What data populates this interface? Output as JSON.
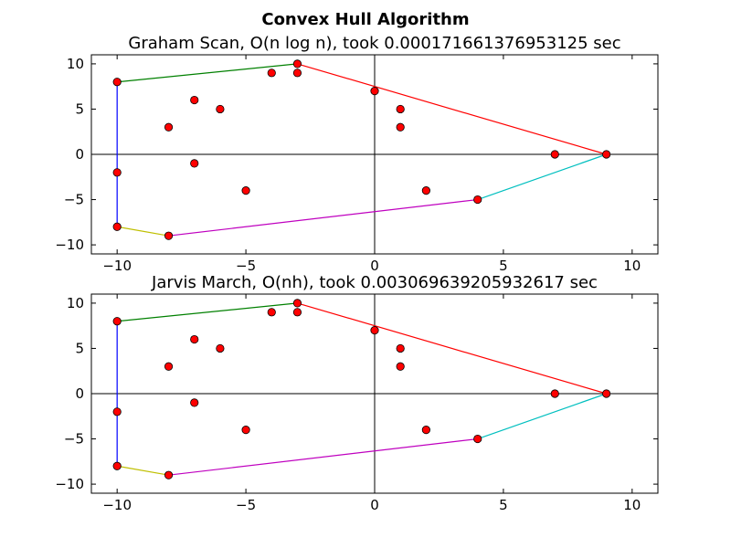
{
  "figure": {
    "suptitle": "Convex Hull Algorithm"
  },
  "chart_data": [
    {
      "type": "scatter",
      "title": "Graham Scan, O(n log n), took 0.000171661376953125 sec",
      "xlabel": "",
      "ylabel": "",
      "xlim": [
        -11,
        11
      ],
      "ylim": [
        -11,
        11
      ],
      "xticks": [
        -10,
        -5,
        0,
        5,
        10
      ],
      "yticks": [
        -10,
        -5,
        0,
        5,
        10
      ],
      "xtick_labels": [
        "−10",
        "−5",
        "0",
        "5",
        "10"
      ],
      "ytick_labels": [
        "−10",
        "−5",
        "0",
        "5",
        "10"
      ],
      "axis_lines_at_zero": true,
      "grid": false,
      "points": [
        {
          "x": -10,
          "y": 8
        },
        {
          "x": -10,
          "y": -2
        },
        {
          "x": -10,
          "y": -8
        },
        {
          "x": -8,
          "y": 3
        },
        {
          "x": -8,
          "y": -9
        },
        {
          "x": -7,
          "y": 6
        },
        {
          "x": -7,
          "y": -1
        },
        {
          "x": -6,
          "y": 5
        },
        {
          "x": -5,
          "y": -4
        },
        {
          "x": -4,
          "y": 9
        },
        {
          "x": -3,
          "y": 10
        },
        {
          "x": -3,
          "y": 9
        },
        {
          "x": 0,
          "y": 7
        },
        {
          "x": 1,
          "y": 5
        },
        {
          "x": 1,
          "y": 3
        },
        {
          "x": 2,
          "y": -4
        },
        {
          "x": 4,
          "y": -5
        },
        {
          "x": 7,
          "y": 0
        },
        {
          "x": 9,
          "y": 0
        }
      ],
      "point_color": "#ff0000",
      "hull_edges": [
        {
          "from": [
            -10,
            8
          ],
          "to": [
            -3,
            10
          ],
          "color": "#008000"
        },
        {
          "from": [
            -3,
            10
          ],
          "to": [
            9,
            0
          ],
          "color": "#ff0000"
        },
        {
          "from": [
            9,
            0
          ],
          "to": [
            4,
            -5
          ],
          "color": "#00bfbf"
        },
        {
          "from": [
            4,
            -5
          ],
          "to": [
            -8,
            -9
          ],
          "color": "#bf00bf"
        },
        {
          "from": [
            -8,
            -9
          ],
          "to": [
            -10,
            -8
          ],
          "color": "#bfbf00"
        },
        {
          "from": [
            -10,
            -8
          ],
          "to": [
            -10,
            8
          ],
          "color": "#0000ff"
        }
      ]
    },
    {
      "type": "scatter",
      "title": "Jarvis March, O(nh), took 0.003069639205932617 sec",
      "xlabel": "",
      "ylabel": "",
      "xlim": [
        -11,
        11
      ],
      "ylim": [
        -11,
        11
      ],
      "xticks": [
        -10,
        -5,
        0,
        5,
        10
      ],
      "yticks": [
        -10,
        -5,
        0,
        5,
        10
      ],
      "xtick_labels": [
        "−10",
        "−5",
        "0",
        "5",
        "10"
      ],
      "ytick_labels": [
        "−10",
        "−5",
        "0",
        "5",
        "10"
      ],
      "axis_lines_at_zero": true,
      "grid": false,
      "points": [
        {
          "x": -10,
          "y": 8
        },
        {
          "x": -10,
          "y": -2
        },
        {
          "x": -10,
          "y": -8
        },
        {
          "x": -8,
          "y": 3
        },
        {
          "x": -8,
          "y": -9
        },
        {
          "x": -7,
          "y": 6
        },
        {
          "x": -7,
          "y": -1
        },
        {
          "x": -6,
          "y": 5
        },
        {
          "x": -5,
          "y": -4
        },
        {
          "x": -4,
          "y": 9
        },
        {
          "x": -3,
          "y": 10
        },
        {
          "x": -3,
          "y": 9
        },
        {
          "x": 0,
          "y": 7
        },
        {
          "x": 1,
          "y": 5
        },
        {
          "x": 1,
          "y": 3
        },
        {
          "x": 2,
          "y": -4
        },
        {
          "x": 4,
          "y": -5
        },
        {
          "x": 7,
          "y": 0
        },
        {
          "x": 9,
          "y": 0
        }
      ],
      "point_color": "#ff0000",
      "hull_edges": [
        {
          "from": [
            -10,
            8
          ],
          "to": [
            -3,
            10
          ],
          "color": "#008000"
        },
        {
          "from": [
            -3,
            10
          ],
          "to": [
            9,
            0
          ],
          "color": "#ff0000"
        },
        {
          "from": [
            9,
            0
          ],
          "to": [
            4,
            -5
          ],
          "color": "#00bfbf"
        },
        {
          "from": [
            4,
            -5
          ],
          "to": [
            -8,
            -9
          ],
          "color": "#bf00bf"
        },
        {
          "from": [
            -8,
            -9
          ],
          "to": [
            -10,
            -8
          ],
          "color": "#bfbf00"
        },
        {
          "from": [
            -10,
            -8
          ],
          "to": [
            -10,
            8
          ],
          "color": "#0000ff"
        }
      ]
    }
  ]
}
